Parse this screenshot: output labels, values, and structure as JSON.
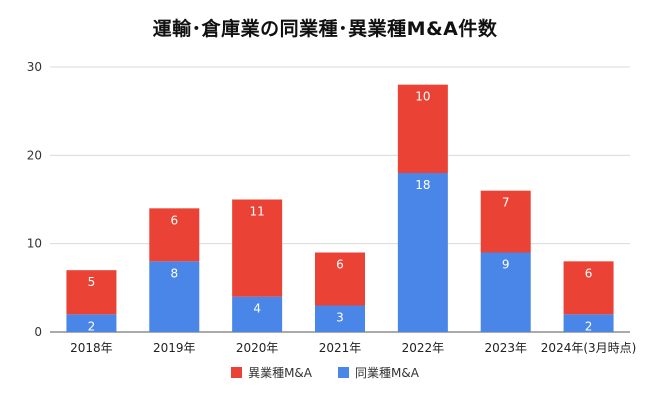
{
  "chart_data": {
    "type": "bar",
    "stacked": true,
    "title": "運輸･倉庫業の同業種･異業種M&A件数",
    "xlabel": "",
    "ylabel": "",
    "ylim": [
      0,
      30
    ],
    "yticks": [
      0,
      10,
      20,
      30
    ],
    "grid": true,
    "legend_position": "bottom",
    "categories": [
      "2018年",
      "2019年",
      "2020年",
      "2021年",
      "2022年",
      "2023年",
      "2024年(3月時点)"
    ],
    "series": [
      {
        "name": "同業種M&A",
        "color": "#4a86e8",
        "values": [
          2,
          8,
          4,
          3,
          18,
          9,
          2
        ]
      },
      {
        "name": "異業種M&A",
        "color": "#ea4335",
        "values": [
          5,
          6,
          11,
          6,
          10,
          7,
          6
        ]
      }
    ]
  }
}
